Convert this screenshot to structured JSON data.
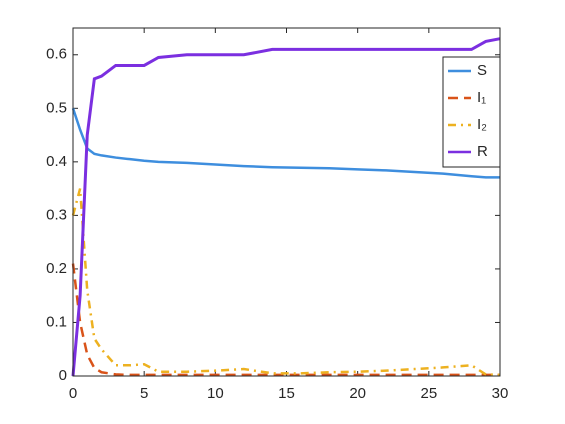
{
  "chart_data": {
    "type": "line",
    "x": [
      0,
      0.5,
      1,
      1.5,
      2,
      3,
      4,
      5,
      6,
      8,
      10,
      12,
      14,
      16,
      18,
      20,
      22,
      24,
      26,
      28,
      29,
      30
    ],
    "series": [
      {
        "name": "S",
        "color": "#3e8ede",
        "style": "solid",
        "values": [
          0.5,
          0.46,
          0.425,
          0.415,
          0.412,
          0.408,
          0.405,
          0.402,
          0.4,
          0.398,
          0.395,
          0.392,
          0.39,
          0.389,
          0.388,
          0.386,
          0.384,
          0.381,
          0.378,
          0.373,
          0.371,
          0.371
        ]
      },
      {
        "name": "I₁",
        "color": "#d95319",
        "style": "dashed",
        "values": [
          0.21,
          0.1,
          0.04,
          0.015,
          0.007,
          0.003,
          0.002,
          0.002,
          0.002,
          0.002,
          0.002,
          0.002,
          0.002,
          0.002,
          0.002,
          0.002,
          0.002,
          0.002,
          0.002,
          0.002,
          0.002,
          0.002
        ]
      },
      {
        "name": "I₂",
        "color": "#edb120",
        "style": "dashdot",
        "values": [
          0.3,
          0.35,
          0.16,
          0.07,
          0.05,
          0.02,
          0.02,
          0.022,
          0.008,
          0.008,
          0.01,
          0.013,
          0.005,
          0.005,
          0.007,
          0.008,
          0.01,
          0.013,
          0.016,
          0.02,
          0.003,
          0.002
        ]
      },
      {
        "name": "R",
        "color": "#7b2fe0",
        "style": "solid",
        "values": [
          0,
          0.15,
          0.45,
          0.555,
          0.56,
          0.58,
          0.58,
          0.58,
          0.595,
          0.6,
          0.6,
          0.6,
          0.61,
          0.61,
          0.61,
          0.61,
          0.61,
          0.61,
          0.61,
          0.61,
          0.625,
          0.63
        ]
      }
    ],
    "xlim": [
      0,
      30
    ],
    "xticks": [
      0,
      5,
      10,
      15,
      20,
      25,
      30
    ],
    "ylim": [
      0,
      0.65
    ],
    "yticks": [
      0,
      0.1,
      0.2,
      0.3,
      0.4,
      0.5,
      0.6
    ],
    "grid": false,
    "legend": "northeast"
  }
}
